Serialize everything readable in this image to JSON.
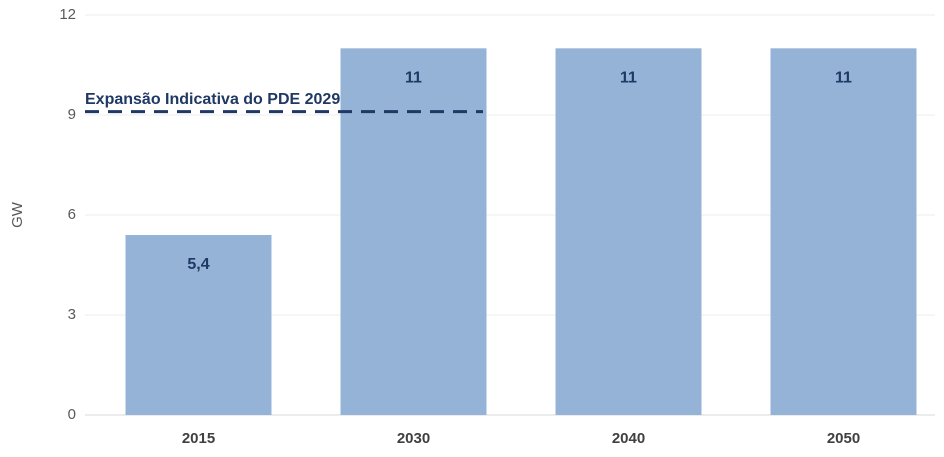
{
  "chart_data": {
    "type": "bar",
    "y_label": "GW",
    "categories": [
      "2015",
      "2030",
      "2040",
      "2050"
    ],
    "values": [
      5.4,
      11,
      11,
      11
    ],
    "value_labels": [
      "5,4",
      "11",
      "11",
      "11"
    ],
    "color": "#95b3d7",
    "ylim": [
      0,
      12
    ],
    "yticks": [
      0,
      3,
      6,
      9,
      12
    ],
    "grid": true,
    "reference_line": {
      "value": 9.1,
      "label": "Expansão Indicativa do PDE 2029",
      "color": "#1f3864"
    }
  }
}
